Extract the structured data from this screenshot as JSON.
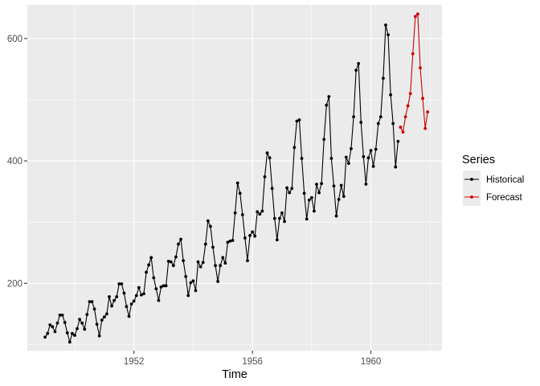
{
  "chart_data": {
    "type": "line",
    "xlabel": "Time",
    "ylabel": "",
    "xlim": [
      1948.4,
      1962.4
    ],
    "ylim": [
      90,
      655
    ],
    "x_ticks": [
      1952,
      1956,
      1960
    ],
    "x_tick_labels": [
      "1952",
      "1956",
      "1960"
    ],
    "y_ticks": [
      200,
      400,
      600
    ],
    "y_tick_labels": [
      "200",
      "400",
      "600"
    ],
    "grid": true,
    "background": "#ebebeb",
    "legend": {
      "title": "Series",
      "position": "right"
    },
    "series": [
      {
        "name": "Historical",
        "color": "#000000",
        "x_start": 1949.0,
        "x_step": 0.08333333,
        "values": [
          112,
          118,
          132,
          129,
          121,
          135,
          148,
          148,
          136,
          119,
          104,
          118,
          115,
          126,
          141,
          135,
          125,
          149,
          170,
          170,
          158,
          133,
          114,
          140,
          145,
          150,
          178,
          163,
          172,
          178,
          199,
          199,
          184,
          162,
          146,
          166,
          171,
          180,
          193,
          181,
          183,
          218,
          230,
          242,
          209,
          191,
          172,
          194,
          196,
          196,
          236,
          235,
          229,
          243,
          264,
          272,
          237,
          211,
          180,
          201,
          204,
          188,
          235,
          227,
          234,
          264,
          302,
          293,
          259,
          229,
          203,
          229,
          242,
          233,
          267,
          269,
          270,
          315,
          364,
          347,
          312,
          274,
          237,
          278,
          284,
          277,
          317,
          313,
          318,
          374,
          413,
          405,
          355,
          306,
          271,
          306,
          315,
          301,
          356,
          348,
          355,
          422,
          465,
          467,
          404,
          347,
          305,
          336,
          340,
          318,
          362,
          348,
          363,
          435,
          491,
          505,
          404,
          359,
          310,
          337,
          360,
          342,
          406,
          396,
          420,
          472,
          548,
          559,
          463,
          407,
          362,
          405,
          417,
          391,
          419,
          461,
          472,
          535,
          622,
          606,
          508,
          461,
          390,
          432
        ]
      },
      {
        "name": "Forecast",
        "color": "#cc0000",
        "x_start": 1961.0,
        "x_step": 0.08333333,
        "values": [
          455,
          447,
          472,
          490,
          510,
          575,
          636,
          640,
          552,
          502,
          453,
          480
        ]
      }
    ]
  }
}
